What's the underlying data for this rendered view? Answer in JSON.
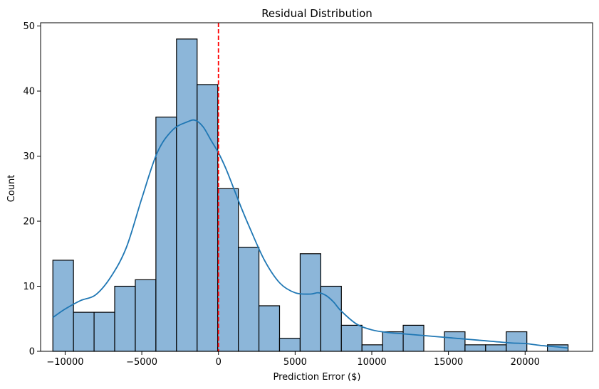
{
  "chart_data": {
    "type": "bar",
    "title": "Residual Distribution",
    "xlabel": "Prediction Error ($)",
    "ylabel": "Count",
    "xlim": [
      -11600,
      24400
    ],
    "ylim": [
      0,
      50.5
    ],
    "bins": {
      "start": -10800,
      "width": 1344,
      "counts": [
        14,
        6,
        6,
        10,
        11,
        36,
        48,
        41,
        25,
        16,
        7,
        2,
        15,
        10,
        4,
        1,
        3,
        4,
        0,
        3,
        1,
        1,
        3,
        0,
        1
      ]
    },
    "xticks": [
      {
        "value": -10000,
        "label": "−10000"
      },
      {
        "value": -5000,
        "label": "−5000"
      },
      {
        "value": 0,
        "label": "0"
      },
      {
        "value": 5000,
        "label": "5000"
      },
      {
        "value": 10000,
        "label": "10000"
      },
      {
        "value": 15000,
        "label": "15000"
      },
      {
        "value": 20000,
        "label": "20000"
      }
    ],
    "yticks": [
      {
        "value": 0,
        "label": "0"
      },
      {
        "value": 10,
        "label": "10"
      },
      {
        "value": 20,
        "label": "20"
      },
      {
        "value": 30,
        "label": "30"
      },
      {
        "value": 40,
        "label": "40"
      },
      {
        "value": 50,
        "label": "50"
      }
    ],
    "kde": {
      "x": [
        -10800,
        -10000,
        -9000,
        -8000,
        -7000,
        -6000,
        -5000,
        -4000,
        -3000,
        -2000,
        -1500,
        -1000,
        -500,
        0,
        500,
        1000,
        1500,
        2000,
        3000,
        4000,
        5000,
        6000,
        6500,
        7000,
        7500,
        8000,
        9000,
        10000,
        11000,
        12000,
        13000,
        15000,
        17000,
        19000,
        20000,
        21000,
        22000,
        22800
      ],
      "y": [
        5.2,
        6.5,
        7.8,
        8.7,
        11.5,
        16,
        23.5,
        30.5,
        34,
        35.3,
        35.5,
        34.5,
        32.5,
        30.5,
        28,
        25,
        22,
        19.2,
        14,
        10.5,
        9,
        8.8,
        9,
        8.6,
        7.6,
        6.2,
        4.2,
        3.3,
        2.9,
        2.7,
        2.5,
        2.1,
        1.7,
        1.3,
        1.2,
        0.9,
        0.7,
        0.5
      ]
    },
    "reference_line": {
      "x": 0,
      "color": "#ff0000",
      "style": "dashed"
    },
    "colors": {
      "bar_fill": "#8cb6d9",
      "bar_edge": "#000000",
      "kde_line": "#1f77b4"
    },
    "grid": false,
    "legend": "none"
  }
}
